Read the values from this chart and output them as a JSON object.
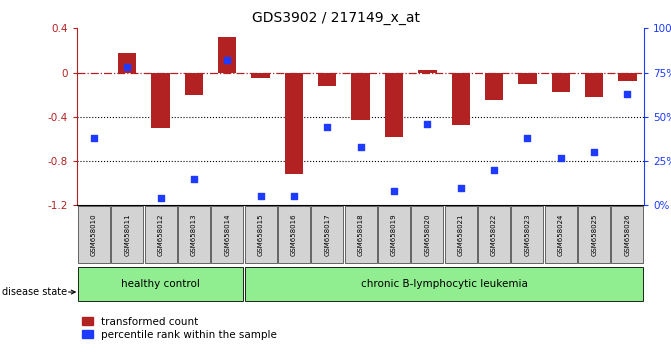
{
  "title": "GDS3902 / 217149_x_at",
  "samples": [
    "GSM658010",
    "GSM658011",
    "GSM658012",
    "GSM658013",
    "GSM658014",
    "GSM658015",
    "GSM658016",
    "GSM658017",
    "GSM658018",
    "GSM658019",
    "GSM658020",
    "GSM658021",
    "GSM658022",
    "GSM658023",
    "GSM658024",
    "GSM658025",
    "GSM658026"
  ],
  "red_bars": [
    0.0,
    0.18,
    -0.5,
    -0.2,
    0.32,
    -0.05,
    -0.92,
    -0.12,
    -0.43,
    -0.58,
    0.02,
    -0.47,
    -0.25,
    -0.1,
    -0.18,
    -0.22,
    -0.08
  ],
  "blue_pct": [
    38,
    78,
    4,
    15,
    82,
    5,
    5,
    44,
    33,
    8,
    46,
    10,
    20,
    38,
    27,
    30,
    63
  ],
  "ylim_left": [
    -1.2,
    0.4
  ],
  "ylim_right": [
    0,
    100
  ],
  "healthy_count": 5,
  "disease_groups": [
    "healthy control",
    "chronic B-lymphocytic leukemia"
  ],
  "bar_color": "#b22222",
  "dot_color": "#1e3aff",
  "dotted_lines": [
    -0.4,
    -0.8
  ],
  "label_bg_color": "#d3d3d3",
  "green_bg": "#90ee90",
  "disease_state_label": "disease state",
  "legend_red": "transformed count",
  "legend_blue": "percentile rank within the sample",
  "right_yticks": [
    0,
    25,
    50,
    75,
    100
  ],
  "right_yticklabels": [
    "0%",
    "25%",
    "50%",
    "75%",
    "100%"
  ],
  "left_yticks": [
    -1.2,
    -0.8,
    -0.4,
    0.0,
    0.4
  ],
  "left_yticklabels": [
    "-1.2",
    "-0.8",
    "-0.4",
    "0",
    "0.4"
  ]
}
